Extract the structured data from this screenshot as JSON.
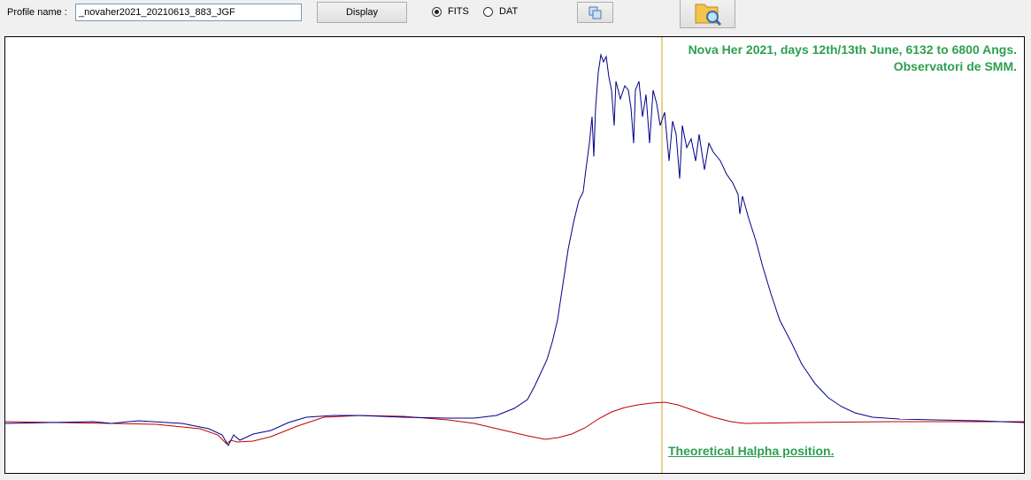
{
  "toolbar": {
    "profile_label": "Profile name :",
    "profile_value": "_novaher2021_20210613_883_JGF",
    "display_button": "Display",
    "radio_options": [
      {
        "label": "FITS",
        "checked": true
      },
      {
        "label": "DAT",
        "checked": false
      }
    ]
  },
  "plot": {
    "title_line1": "Nova Her 2021, days 12th/13th June, 6132 to 6800 Angs.",
    "title_line2": "Observatori de SMM.",
    "marker_label": "Theoretical Halpha position."
  }
}
